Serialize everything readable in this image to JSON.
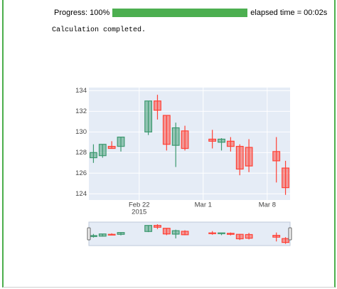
{
  "progress": {
    "label": "Progress: 100%",
    "value": 100,
    "elapsed": "elapsed time = 00:02s"
  },
  "status": "Calculation completed.",
  "chart_data": {
    "type": "candlestick",
    "x": [
      "2015-02-17",
      "2015-02-18",
      "2015-02-19",
      "2015-02-20",
      "2015-02-23",
      "2015-02-24",
      "2015-02-25",
      "2015-02-26",
      "2015-02-27",
      "2015-03-02",
      "2015-03-03",
      "2015-03-04",
      "2015-03-05",
      "2015-03-06",
      "2015-03-09",
      "2015-03-10"
    ],
    "open": [
      127.5,
      127.7,
      128.6,
      128.6,
      130.0,
      133.0,
      131.6,
      128.7,
      130.1,
      129.3,
      129.0,
      129.1,
      128.6,
      128.5,
      128.1,
      126.5
    ],
    "high": [
      128.8,
      128.8,
      129.1,
      129.5,
      133.0,
      133.6,
      131.6,
      130.9,
      130.6,
      130.2,
      129.4,
      129.5,
      128.8,
      129.3,
      129.5,
      127.2
    ],
    "low": [
      127.0,
      127.5,
      128.4,
      128.1,
      129.7,
      131.2,
      128.2,
      126.6,
      128.2,
      128.4,
      128.2,
      128.1,
      125.8,
      126.1,
      125.1,
      123.9
    ],
    "close": [
      128.0,
      128.8,
      128.4,
      129.5,
      133.0,
      132.1,
      128.8,
      130.4,
      128.4,
      129.1,
      129.3,
      128.6,
      126.4,
      126.7,
      127.2,
      124.6
    ],
    "increasing_color": "#3d9970",
    "decreasing_color": "#ff4136",
    "xlim": [
      "2015-02-16 12:00",
      "2015-03-10 12:00"
    ],
    "xticks": [
      {
        "value": "2015-02-22",
        "label": [
          "Feb 22",
          "2015"
        ]
      },
      {
        "value": "2015-03-01",
        "label": [
          "Mar 1"
        ]
      },
      {
        "value": "2015-03-08",
        "label": [
          "Mar 8"
        ]
      }
    ],
    "ylim": [
      123.4,
      134.3
    ],
    "yticks": [
      124,
      126,
      128,
      130,
      132,
      134
    ],
    "grid": true,
    "rangeslider": true
  }
}
